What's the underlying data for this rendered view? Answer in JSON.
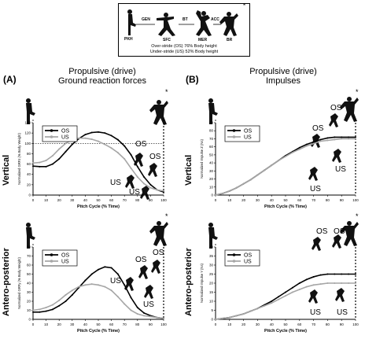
{
  "legend_box": {
    "phase_labels": [
      "PKH",
      "SFC",
      "MER",
      "BR"
    ],
    "transition_labels": [
      "GEN",
      "BT",
      "ACC"
    ],
    "asterisk": "*",
    "note_line1": "Over-stride (OS) 76% Body height",
    "note_line2": "Under-stride (US) 52% Body height"
  },
  "panel_a": {
    "letter": "(A)",
    "title_line1": "Propulsive (drive)",
    "title_line2": "Ground reaction forces"
  },
  "panel_b": {
    "letter": "(B)",
    "title_line1": "Propulsive  (drive)",
    "title_line2": "Impulses"
  },
  "row_labels": [
    "Vertical",
    "Antero-posterior"
  ],
  "annotations": {
    "os": "OS",
    "us": "US"
  },
  "colors": {
    "os": "#000000",
    "us": "#a6a6a6"
  },
  "chart_data": [
    {
      "type": "line",
      "panel": "A-vertical",
      "xlabel": "Pitch Cycle (% Time)",
      "ylabel": "Normalized GRFz (% Body Weight)",
      "xlim": [
        0,
        100
      ],
      "ylim": [
        0,
        140
      ],
      "xticks": [
        0,
        10,
        20,
        30,
        40,
        50,
        60,
        70,
        80,
        90,
        100
      ],
      "yticks": [
        0,
        20,
        40,
        60,
        80,
        100,
        120,
        140
      ],
      "legend": "top-left",
      "reference_line": 100,
      "series": [
        {
          "name": "OS",
          "x": [
            0,
            5,
            10,
            15,
            20,
            25,
            30,
            35,
            40,
            45,
            50,
            55,
            60,
            65,
            70,
            75,
            80,
            85,
            90,
            95,
            100
          ],
          "y": [
            56,
            55,
            55,
            60,
            70,
            84,
            98,
            109,
            117,
            121,
            122,
            120,
            115,
            107,
            95,
            78,
            55,
            35,
            20,
            10,
            6
          ]
        },
        {
          "name": "US",
          "x": [
            0,
            5,
            10,
            15,
            20,
            25,
            30,
            35,
            40,
            45,
            50,
            55,
            60,
            65,
            70,
            75,
            80,
            85,
            90,
            95,
            100
          ],
          "y": [
            62,
            63,
            67,
            76,
            89,
            100,
            107,
            110,
            110,
            108,
            104,
            98,
            91,
            82,
            70,
            52,
            35,
            22,
            14,
            10,
            8
          ]
        }
      ]
    },
    {
      "type": "line",
      "panel": "A-antero-posterior",
      "xlabel": "Pitch Cycle (% Time)",
      "ylabel": "Normalized GRFy (% Body Weight)",
      "xlim": [
        0,
        100
      ],
      "ylim": [
        0,
        80
      ],
      "xticks": [
        0,
        10,
        20,
        30,
        40,
        50,
        60,
        70,
        80,
        90,
        100
      ],
      "yticks": [
        0,
        10,
        20,
        30,
        40,
        50,
        60,
        70,
        80
      ],
      "legend": "top-left",
      "series": [
        {
          "name": "OS",
          "x": [
            0,
            5,
            10,
            15,
            20,
            25,
            30,
            35,
            40,
            45,
            50,
            55,
            60,
            65,
            70,
            75,
            80,
            85,
            90,
            95,
            100
          ],
          "y": [
            8,
            8,
            9,
            11,
            15,
            20,
            27,
            35,
            43,
            50,
            55,
            58,
            57,
            50,
            38,
            24,
            13,
            7,
            4,
            2,
            1
          ]
        },
        {
          "name": "US",
          "x": [
            0,
            5,
            10,
            15,
            20,
            25,
            30,
            35,
            40,
            45,
            50,
            55,
            60,
            65,
            70,
            75,
            80,
            85,
            90,
            95,
            100
          ],
          "y": [
            10,
            11,
            13,
            16,
            21,
            27,
            32,
            36,
            38,
            39,
            38,
            36,
            32,
            25,
            17,
            10,
            6,
            4,
            3,
            2,
            1
          ]
        }
      ]
    },
    {
      "type": "line",
      "panel": "B-vertical",
      "xlabel": "Pitch Cycle (% Time)",
      "ylabel": "Normalized Impulse Z (Ns)",
      "xlim": [
        0,
        100
      ],
      "ylim": [
        0,
        90
      ],
      "xticks": [
        0,
        10,
        20,
        30,
        40,
        50,
        60,
        70,
        80,
        90,
        100
      ],
      "yticks": [
        0,
        10,
        20,
        30,
        40,
        50,
        60,
        70,
        80,
        90
      ],
      "legend": "top-left",
      "series": [
        {
          "name": "OS",
          "x": [
            0,
            5,
            10,
            15,
            20,
            25,
            30,
            35,
            40,
            45,
            50,
            55,
            60,
            65,
            70,
            75,
            80,
            85,
            90,
            95,
            100
          ],
          "y": [
            0,
            2,
            5,
            9,
            14,
            19,
            25,
            31,
            37,
            43,
            49,
            54,
            59,
            63,
            66,
            69,
            71,
            72,
            72,
            72,
            72
          ]
        },
        {
          "name": "US",
          "x": [
            0,
            5,
            10,
            15,
            20,
            25,
            30,
            35,
            40,
            45,
            50,
            55,
            60,
            65,
            70,
            75,
            80,
            85,
            90,
            95,
            100
          ],
          "y": [
            0,
            2,
            5,
            9,
            14,
            19,
            25,
            31,
            37,
            43,
            48,
            53,
            57,
            61,
            64,
            67,
            68,
            69,
            70,
            70,
            70
          ]
        }
      ]
    },
    {
      "type": "line",
      "panel": "B-antero-posterior",
      "xlabel": "Pitch Cycle (% Time)",
      "ylabel": "Normalized Impulse Y (Ns)",
      "xlim": [
        0,
        100
      ],
      "ylim": [
        0,
        40
      ],
      "xticks": [
        0,
        10,
        20,
        30,
        40,
        50,
        60,
        70,
        80,
        90,
        100
      ],
      "yticks": [
        0,
        5,
        10,
        15,
        20,
        25,
        30,
        35,
        40
      ],
      "legend": "top-left",
      "series": [
        {
          "name": "OS",
          "x": [
            0,
            5,
            10,
            15,
            20,
            25,
            30,
            35,
            40,
            45,
            50,
            55,
            60,
            65,
            70,
            75,
            80,
            85,
            90,
            95,
            100
          ],
          "y": [
            0,
            0.5,
            1,
            2,
            3,
            4.5,
            6,
            8,
            10,
            12.5,
            15,
            17.5,
            20,
            22,
            23.5,
            24.5,
            25,
            25,
            25,
            25,
            25
          ]
        },
        {
          "name": "US",
          "x": [
            0,
            5,
            10,
            15,
            20,
            25,
            30,
            35,
            40,
            45,
            50,
            55,
            60,
            65,
            70,
            75,
            80,
            85,
            90,
            95,
            100
          ],
          "y": [
            0,
            0.5,
            1,
            2,
            3,
            4.5,
            6,
            7.5,
            9,
            11,
            13,
            15,
            16.5,
            18,
            19,
            19.5,
            20,
            20,
            20,
            20,
            20
          ]
        }
      ]
    }
  ]
}
